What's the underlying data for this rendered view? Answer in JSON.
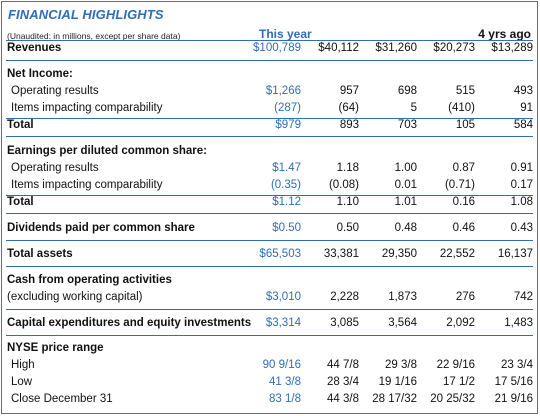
{
  "title": "FINANCIAL HIGHLIGHTS",
  "note": "(Unaudited: in millions, except per share data)",
  "col_this_year": "This year",
  "col_4yrs": "4 yrs ago",
  "rows": [
    {
      "label": "Revenues",
      "values": [
        "$100,789",
        "$40,112",
        "$31,260",
        "$20,273",
        "$13,289"
      ]
    },
    {
      "label": "Net Income:"
    },
    {
      "label": "Operating results",
      "values": [
        "$1,266",
        "957",
        "698",
        "515",
        "493"
      ]
    },
    {
      "label": "Items impacting comparability",
      "values": [
        "(287)",
        "(64)",
        "5",
        "(410)",
        "91"
      ]
    },
    {
      "label": "Total",
      "values": [
        "$979",
        "893",
        "703",
        "105",
        "584"
      ]
    },
    {
      "label": "Earnings per diluted common share:"
    },
    {
      "label": "Operating results",
      "values": [
        "$1.47",
        "1.18",
        "1.00",
        "0.87",
        "0.91"
      ]
    },
    {
      "label": "Items impacting comparability",
      "values": [
        "(0.35)",
        "(0.08)",
        "0.01",
        "(0.71)",
        "0.17"
      ]
    },
    {
      "label": "Total",
      "values": [
        "$1.12",
        "1.10",
        "1.01",
        "0.16",
        "1.08"
      ]
    },
    {
      "label": "Dividends paid per common share",
      "values": [
        "$0.50",
        "0.50",
        "0.48",
        "0.46",
        "0.43"
      ]
    },
    {
      "label": "Total assets",
      "values": [
        "$65,503",
        "33,381",
        "29,350",
        "22,552",
        "16,137"
      ]
    },
    {
      "label": "Cash from operating activities"
    },
    {
      "label": "(excluding working capital)",
      "values": [
        "$3,010",
        "2,228",
        "1,873",
        "276",
        "742"
      ]
    },
    {
      "label": "Capital expenditures and equity investments",
      "values": [
        "$3,314",
        "3,085",
        "3,564",
        "2,092",
        "1,483"
      ]
    },
    {
      "label": "NYSE price range"
    },
    {
      "label": "High",
      "values": [
        "90 9/16",
        "44 7/8",
        "29 3/8",
        "22 9/16",
        "23 3/4"
      ]
    },
    {
      "label": "Low",
      "values": [
        "41 3/8",
        "28 3/4",
        "19 1/16",
        "17 1/2",
        "17 5/16"
      ]
    },
    {
      "label": "Close December 31",
      "values": [
        "83 1/8",
        "44 3/8",
        "28 17/32",
        "20 25/32",
        "21 9/16"
      ]
    }
  ]
}
